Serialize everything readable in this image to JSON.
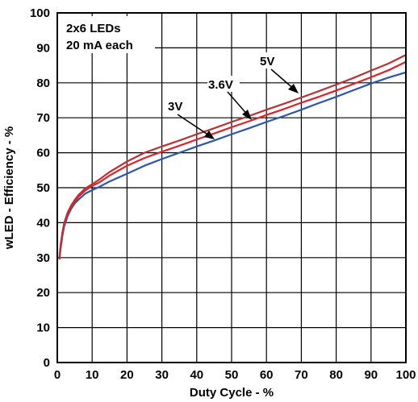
{
  "chart_data": {
    "type": "line",
    "xlabel": "Duty Cycle - %",
    "ylabel": "wLED - Efficiency - %",
    "xlim": [
      0,
      100
    ],
    "ylim": [
      0,
      100
    ],
    "x_ticks": [
      "0",
      "10",
      "20",
      "30",
      "40",
      "50",
      "60",
      "70",
      "80",
      "90",
      "100"
    ],
    "y_ticks": [
      "0",
      "10",
      "20",
      "30",
      "40",
      "50",
      "60",
      "70",
      "80",
      "90",
      "100"
    ],
    "grid": true,
    "annotation_lines": [
      "2x6 LEDs",
      "20 mA each"
    ],
    "series": [
      {
        "name": "5V",
        "color": "#b83232",
        "x": [
          0.6,
          1,
          1.5,
          2,
          3,
          4,
          5,
          6,
          8,
          10,
          12,
          15,
          20,
          25,
          30,
          35,
          40,
          45,
          50,
          55,
          60,
          65,
          70,
          75,
          80,
          85,
          90,
          95,
          100
        ],
        "y": [
          30,
          34,
          37.5,
          40,
          43,
          45,
          46.5,
          47.8,
          49.8,
          51,
          52.3,
          54.5,
          57.5,
          60,
          61.8,
          63.5,
          65.3,
          67,
          68.8,
          70.5,
          72.3,
          74,
          75.8,
          77.6,
          79.5,
          81.4,
          83.5,
          85.5,
          88
        ]
      },
      {
        "name": "3.6V",
        "color": "#e0202a",
        "x": [
          0.6,
          1,
          1.5,
          2,
          3,
          4,
          5,
          6,
          8,
          10,
          12,
          15,
          20,
          25,
          30,
          35,
          40,
          45,
          50,
          55,
          60,
          65,
          70,
          75,
          80,
          85,
          90,
          95,
          100
        ],
        "y": [
          29.5,
          33.5,
          37,
          39.5,
          42.5,
          44.5,
          46,
          47.3,
          49.2,
          50.5,
          51.5,
          53.5,
          56.3,
          58.5,
          60.3,
          62,
          63.8,
          65.5,
          67.3,
          69,
          70.8,
          72.5,
          74.3,
          76,
          77.8,
          79.7,
          81.6,
          83.6,
          86
        ]
      },
      {
        "name": "3V",
        "color": "#2a55b0",
        "x": [
          0.6,
          1,
          1.5,
          2,
          3,
          4,
          5,
          6,
          8,
          10,
          12,
          15,
          20,
          25,
          30,
          35,
          40,
          45,
          50,
          55,
          60,
          65,
          70,
          75,
          80,
          85,
          90,
          95,
          100
        ],
        "y": [
          29.5,
          33,
          36.5,
          39,
          42,
          44,
          45.5,
          46.5,
          48.3,
          49.3,
          50.2,
          51.8,
          54,
          56.3,
          58.2,
          60,
          61.8,
          63.5,
          65.3,
          67,
          68.8,
          70.5,
          72.3,
          74.2,
          76,
          77.9,
          79.8,
          81.5,
          83
        ]
      }
    ]
  }
}
